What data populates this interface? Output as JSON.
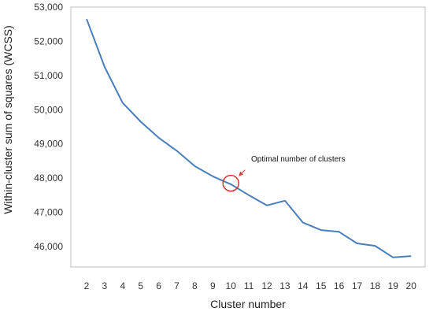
{
  "chart_data": {
    "type": "line",
    "title": "",
    "xlabel": "Cluster number",
    "ylabel": "Within-cluster sum of squares (WCSS)",
    "x": [
      2,
      3,
      4,
      5,
      6,
      7,
      8,
      9,
      10,
      11,
      12,
      13,
      14,
      15,
      16,
      17,
      18,
      19,
      20
    ],
    "series": [
      {
        "values": [
          52650,
          51250,
          50200,
          49650,
          49180,
          48800,
          48350,
          48050,
          47820,
          47500,
          47200,
          47340,
          46700,
          46480,
          46430,
          46090,
          46020,
          45680,
          45720
        ]
      }
    ],
    "ylim": [
      45400,
      53000
    ],
    "y_ticks": [
      46000,
      47000,
      48000,
      49000,
      50000,
      51000,
      52000,
      53000
    ],
    "y_tick_labels": [
      "46,000",
      "47,000",
      "48,000",
      "49,000",
      "50,000",
      "51,000",
      "52,000",
      "53,000"
    ],
    "x_tick_labels": [
      "2",
      "3",
      "4",
      "5",
      "6",
      "7",
      "8",
      "9",
      "10",
      "11",
      "12",
      "13",
      "14",
      "15",
      "16",
      "17",
      "18",
      "19",
      "20"
    ],
    "grid": false,
    "annotation": {
      "text": "Optimal number of clusters",
      "x": 10,
      "y": 47850
    },
    "colors": {
      "line": "#4a7ebb",
      "marker_circle": "#d9302c",
      "arrow": "#e0403a",
      "frame": "#bfbfbf"
    }
  }
}
